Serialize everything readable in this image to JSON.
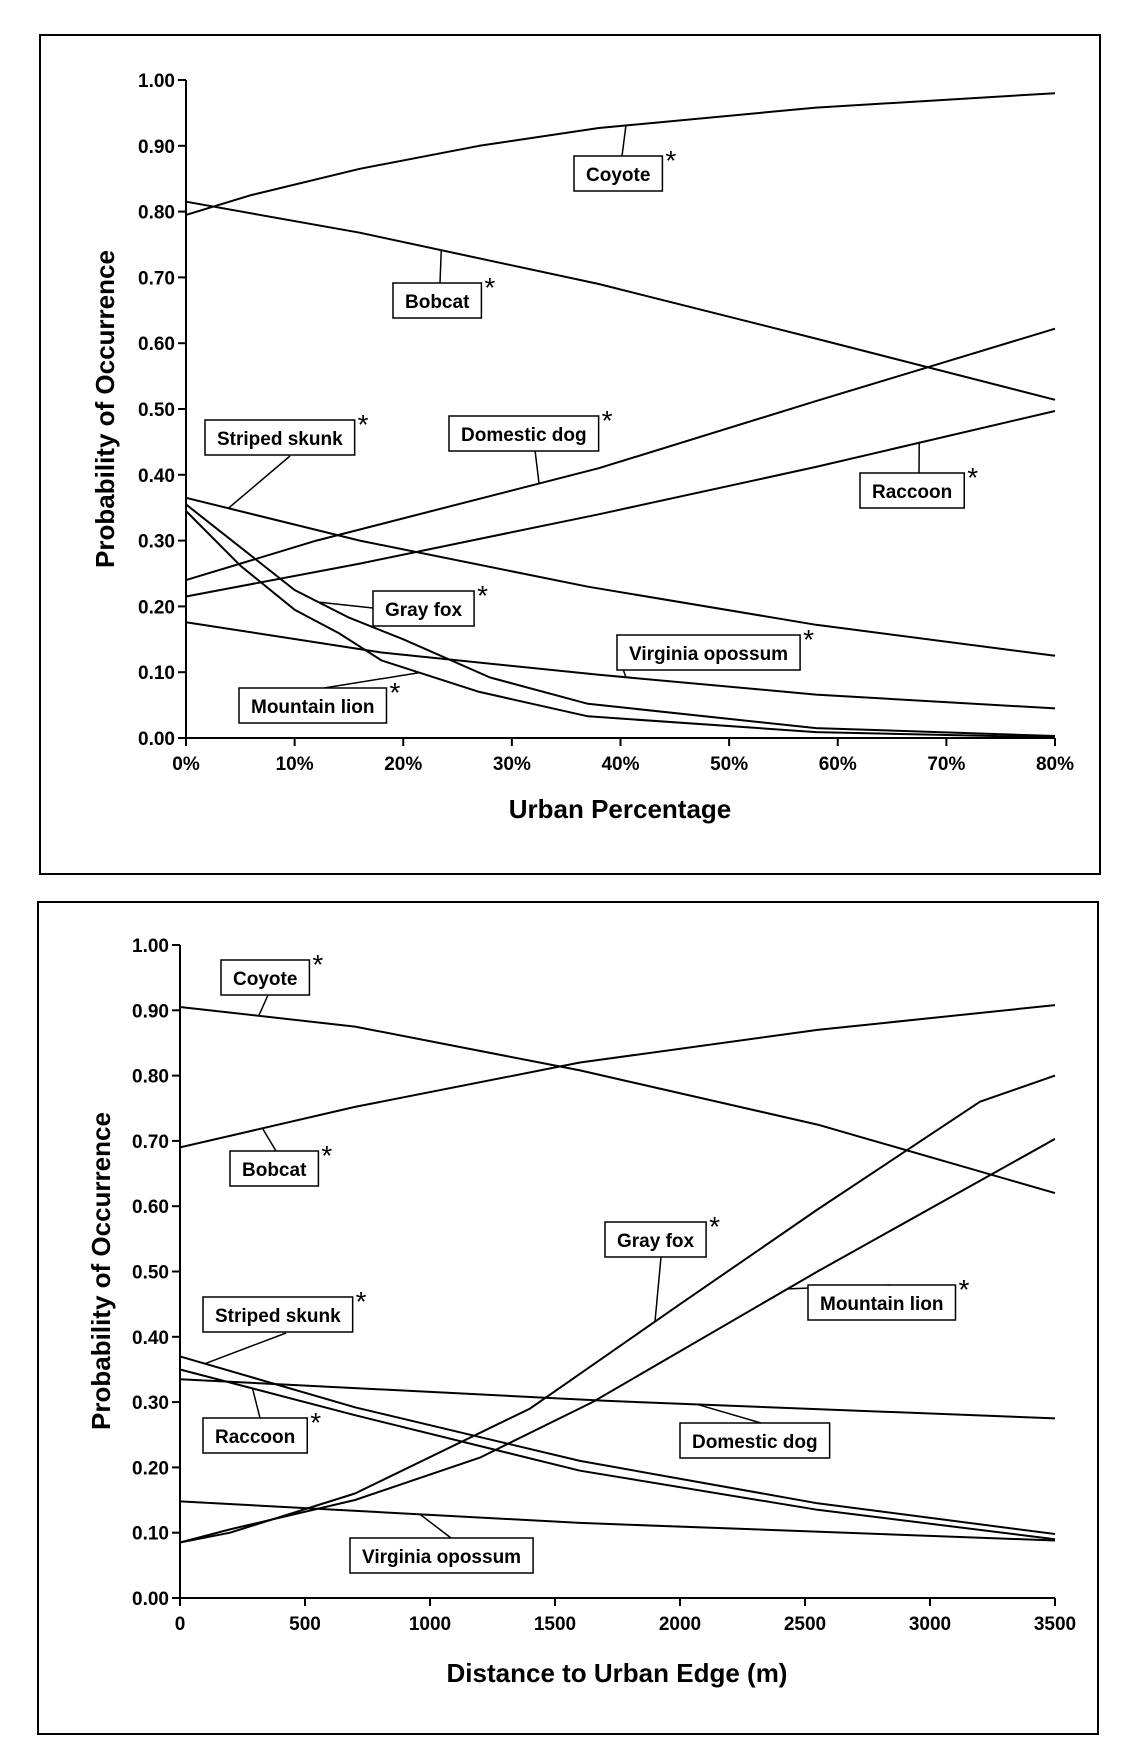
{
  "chart_data": [
    {
      "type": "line",
      "title": "",
      "xlabel": "Urban Percentage",
      "ylabel": "Probability of Occurrence",
      "xlim": [
        0,
        80
      ],
      "ylim": [
        0,
        1
      ],
      "grid": false,
      "legend": "none (inline callout labels)",
      "x_ticks": [
        "0%",
        "10%",
        "20%",
        "30%",
        "40%",
        "50%",
        "60%",
        "70%",
        "80%"
      ],
      "y_ticks": [
        "0.00",
        "0.10",
        "0.20",
        "0.30",
        "0.40",
        "0.50",
        "0.60",
        "0.70",
        "0.80",
        "0.90",
        "1.00"
      ],
      "series": [
        {
          "name": "Coyote",
          "significant": true,
          "x": [
            0,
            6,
            16,
            27,
            38,
            58,
            80
          ],
          "y": [
            0.795,
            0.825,
            0.865,
            0.9,
            0.927,
            0.958,
            0.98
          ]
        },
        {
          "name": "Bobcat",
          "significant": true,
          "x": [
            0,
            16,
            38,
            58,
            80
          ],
          "y": [
            0.815,
            0.768,
            0.69,
            0.607,
            0.514
          ]
        },
        {
          "name": "Domestic dog",
          "significant": true,
          "x": [
            0,
            12,
            38,
            58,
            80
          ],
          "y": [
            0.24,
            0.3,
            0.41,
            0.512,
            0.622
          ]
        },
        {
          "name": "Raccoon",
          "significant": true,
          "x": [
            0,
            16,
            38,
            58,
            80
          ],
          "y": [
            0.215,
            0.265,
            0.34,
            0.412,
            0.497
          ]
        },
        {
          "name": "Striped skunk",
          "significant": true,
          "x": [
            0,
            16,
            37,
            58,
            80
          ],
          "y": [
            0.365,
            0.3,
            0.23,
            0.172,
            0.125
          ]
        },
        {
          "name": "Gray fox",
          "significant": true,
          "x": [
            0,
            5,
            10,
            15,
            20,
            28,
            37,
            58,
            80
          ],
          "y": [
            0.355,
            0.29,
            0.225,
            0.183,
            0.15,
            0.092,
            0.052,
            0.015,
            0.003
          ]
        },
        {
          "name": "Mountain lion",
          "significant": true,
          "x": [
            0,
            5,
            10,
            14,
            18,
            27,
            37,
            58,
            80
          ],
          "y": [
            0.345,
            0.262,
            0.195,
            0.16,
            0.118,
            0.07,
            0.033,
            0.009,
            0.001
          ]
        },
        {
          "name": "Virginia opossum",
          "significant": true,
          "x": [
            0,
            18,
            38,
            58,
            80
          ],
          "y": [
            0.176,
            0.13,
            0.096,
            0.066,
            0.045
          ]
        }
      ]
    },
    {
      "type": "line",
      "title": "",
      "xlabel": "Distance to Urban Edge (m)",
      "ylabel": "Probability of Occurrence",
      "xlim": [
        0,
        3500
      ],
      "ylim": [
        0,
        1
      ],
      "grid": false,
      "legend": "none (inline callout labels)",
      "x_ticks": [
        "0",
        "500",
        "1000",
        "1500",
        "2000",
        "2500",
        "3000",
        "3500"
      ],
      "y_ticks": [
        "0.00",
        "0.10",
        "0.20",
        "0.30",
        "0.40",
        "0.50",
        "0.60",
        "0.70",
        "0.80",
        "0.90",
        "1.00"
      ],
      "series": [
        {
          "name": "Coyote",
          "significant": true,
          "x": [
            0,
            700,
            1600,
            2550,
            3500
          ],
          "y": [
            0.905,
            0.875,
            0.808,
            0.725,
            0.62
          ]
        },
        {
          "name": "Bobcat",
          "significant": true,
          "x": [
            0,
            700,
            1600,
            2550,
            3500
          ],
          "y": [
            0.69,
            0.752,
            0.82,
            0.87,
            0.908
          ]
        },
        {
          "name": "Gray fox",
          "significant": true,
          "x": [
            0,
            200,
            700,
            1400,
            2000,
            2550,
            3200,
            3500
          ],
          "y": [
            0.085,
            0.1,
            0.16,
            0.29,
            0.45,
            0.595,
            0.76,
            0.8
          ]
        },
        {
          "name": "Mountain lion",
          "significant": true,
          "x": [
            0,
            200,
            700,
            1200,
            1650,
            2550,
            3500
          ],
          "y": [
            0.085,
            0.105,
            0.15,
            0.215,
            0.3,
            0.5,
            0.703
          ]
        },
        {
          "name": "Striped skunk",
          "significant": true,
          "x": [
            0,
            700,
            1600,
            2550,
            3500
          ],
          "y": [
            0.37,
            0.292,
            0.21,
            0.145,
            0.098
          ]
        },
        {
          "name": "Raccoon",
          "significant": true,
          "x": [
            0,
            700,
            1600,
            2550,
            3500
          ],
          "y": [
            0.35,
            0.28,
            0.195,
            0.135,
            0.09
          ]
        },
        {
          "name": "Domestic dog",
          "significant": false,
          "x": [
            0,
            1700,
            3500
          ],
          "y": [
            0.335,
            0.302,
            0.275
          ]
        },
        {
          "name": "Virginia opossum",
          "significant": false,
          "x": [
            0,
            1600,
            3500
          ],
          "y": [
            0.148,
            0.115,
            0.088
          ]
        }
      ]
    }
  ],
  "significance_marker": "*"
}
